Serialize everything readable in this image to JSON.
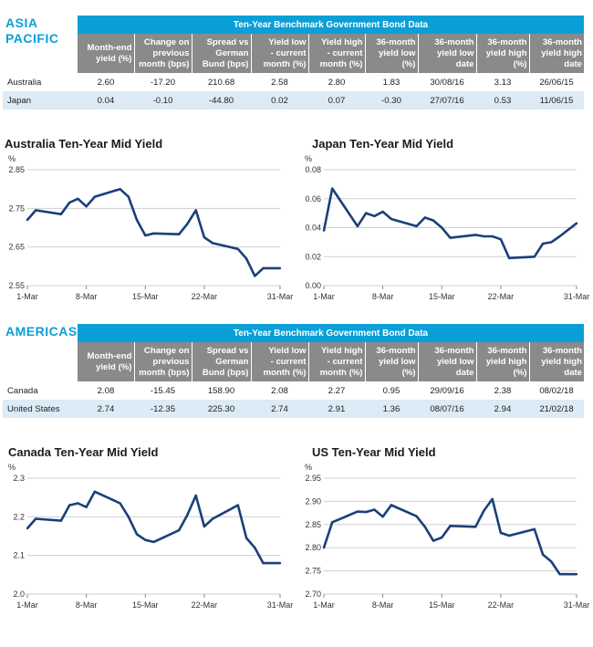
{
  "sections": [
    {
      "region_line1": "ASIA",
      "region_line2": "PACIFIC",
      "table_title": "Ten-Year Benchmark Government Bond Data",
      "headers": [
        [
          "Month-end",
          "yield (%)"
        ],
        [
          "Change on",
          "previous",
          "month (bps)"
        ],
        [
          "Spread vs",
          "German",
          "Bund (bps)"
        ],
        [
          "Yield low",
          "- current",
          "month (%)"
        ],
        [
          "Yield high",
          "- current",
          "month (%)"
        ],
        [
          "36-month",
          "yield low",
          "(%)"
        ],
        [
          "36-month",
          "yield low",
          "date"
        ],
        [
          "36-month",
          "yield high",
          "(%)"
        ],
        [
          "36-month",
          "yield high",
          "date"
        ]
      ],
      "rows": [
        {
          "country": "Australia",
          "cells": [
            "2.60",
            "-17.20",
            "210.68",
            "2.58",
            "2.80",
            "1.83",
            "30/08/16",
            "3.13",
            "26/06/15"
          ]
        },
        {
          "country": "Japan",
          "cells": [
            "0.04",
            "-0.10",
            "-44.80",
            "0.02",
            "0.07",
            "-0.30",
            "27/07/16",
            "0.53",
            "11/06/15"
          ]
        }
      ]
    },
    {
      "region_line1": "AMERICAS",
      "region_line2": "",
      "table_title": "Ten-Year Benchmark Government Bond Data",
      "headers": [
        [
          "Month-end",
          "yield (%)"
        ],
        [
          "Change on",
          "previous",
          "month (bps)"
        ],
        [
          "Spread vs",
          "German",
          "Bund (bps)"
        ],
        [
          "Yield low",
          "- current",
          "month (%)"
        ],
        [
          "Yield high",
          "- current",
          "month (%)"
        ],
        [
          "36-month",
          "yield low",
          "(%)"
        ],
        [
          "36-month",
          "yield low",
          "date"
        ],
        [
          "36-month",
          "yield high",
          "(%)"
        ],
        [
          "36-month",
          "yield high",
          "date"
        ]
      ],
      "rows": [
        {
          "country": "Canada",
          "cells": [
            "2.08",
            "-15.45",
            "158.90",
            "2.08",
            "2.27",
            "0.95",
            "29/09/16",
            "2.38",
            "08/02/18"
          ]
        },
        {
          "country": "United States",
          "cells": [
            "2.74",
            "-12.35",
            "225.30",
            "2.74",
            "2.91",
            "1.36",
            "08/07/16",
            "2.94",
            "21/02/18"
          ]
        }
      ]
    }
  ],
  "colors": {
    "accent": "#0b9fd8",
    "header_gray": "#8a8a8a",
    "row_alt": "#dcebf6",
    "line": "#1c3f7a"
  },
  "chart_data": [
    {
      "type": "line",
      "title": "Australia Ten-Year Mid Yield",
      "ylabel": "%",
      "ylim": [
        2.55,
        2.85
      ],
      "yticks": [
        "2.85",
        "2.75",
        "2.65",
        "2.55"
      ],
      "ytick_values": [
        2.85,
        2.75,
        2.65,
        2.55
      ],
      "xticks": [
        "1-Mar",
        "8-Mar",
        "15-Mar",
        "22-Mar",
        "31-Mar"
      ],
      "xtick_days": [
        1,
        8,
        15,
        22,
        31
      ],
      "x": [
        1,
        2,
        3,
        4,
        5,
        6,
        7,
        8,
        9,
        10,
        11,
        12,
        13,
        14,
        15,
        16,
        17,
        18,
        19,
        20,
        21,
        22
      ],
      "values": [
        2.72,
        2.745,
        2.735,
        2.765,
        2.775,
        2.755,
        2.78,
        2.8,
        2.78,
        2.72,
        2.68,
        2.685,
        2.683,
        2.71,
        2.745,
        2.675,
        2.66,
        2.645,
        2.62,
        2.575,
        2.595,
        2.595
      ]
    },
    {
      "type": "line",
      "title": "Japan Ten-Year Mid Yield",
      "ylabel": "%",
      "ylim": [
        0.0,
        0.08
      ],
      "yticks": [
        "0.08",
        "0.06",
        "0.04",
        "0.02",
        "0.00"
      ],
      "ytick_values": [
        0.08,
        0.06,
        0.04,
        0.02,
        0.0
      ],
      "xticks": [
        "1-Mar",
        "8-Mar",
        "15-Mar",
        "22-Mar",
        "31-Mar"
      ],
      "xtick_days": [
        1,
        8,
        15,
        22,
        31
      ],
      "x": [
        1,
        2,
        3,
        4,
        5,
        6,
        7,
        8,
        9,
        10,
        11,
        12,
        13,
        14,
        15,
        16,
        17,
        18,
        19,
        20,
        21,
        22
      ],
      "values": [
        0.038,
        0.067,
        0.041,
        0.05,
        0.048,
        0.051,
        0.046,
        0.041,
        0.047,
        0.045,
        0.04,
        0.033,
        0.035,
        0.034,
        0.034,
        0.032,
        0.019,
        0.02,
        0.029,
        0.03,
        0.034,
        0.043
      ]
    },
    {
      "type": "line",
      "title": "Canada Ten-Year Mid Yield",
      "ylabel": "%",
      "ylim": [
        2.0,
        2.3
      ],
      "yticks": [
        "2.3",
        "2.2",
        "2.1",
        "2.0"
      ],
      "ytick_values": [
        2.3,
        2.2,
        2.1,
        2.0
      ],
      "xticks": [
        "1-Mar",
        "8-Mar",
        "15-Mar",
        "22-Mar",
        "31-Mar"
      ],
      "xtick_days": [
        1,
        8,
        15,
        22,
        31
      ],
      "x": [
        1,
        2,
        3,
        4,
        5,
        6,
        7,
        8,
        9,
        10,
        11,
        12,
        13,
        14,
        15,
        16,
        17,
        18,
        19,
        20,
        21,
        22
      ],
      "values": [
        2.17,
        2.195,
        2.19,
        2.23,
        2.235,
        2.225,
        2.265,
        2.235,
        2.2,
        2.155,
        2.14,
        2.135,
        2.165,
        2.205,
        2.255,
        2.175,
        2.195,
        2.23,
        2.145,
        2.12,
        2.08,
        2.08
      ]
    },
    {
      "type": "line",
      "title": "US Ten-Year Mid Yield",
      "ylabel": "%",
      "ylim": [
        2.7,
        2.95
      ],
      "yticks": [
        "2.95",
        "2.90",
        "2.85",
        "2.80",
        "2.75",
        "2.70"
      ],
      "ytick_values": [
        2.95,
        2.9,
        2.85,
        2.8,
        2.75,
        2.7
      ],
      "xticks": [
        "1-Mar",
        "8-Mar",
        "15-Mar",
        "22-Mar",
        "31-Mar"
      ],
      "xtick_days": [
        1,
        8,
        15,
        22,
        31
      ],
      "x": [
        1,
        2,
        3,
        4,
        5,
        6,
        7,
        8,
        9,
        10,
        11,
        12,
        13,
        14,
        15,
        16,
        17,
        18,
        19,
        20,
        21,
        22
      ],
      "values": [
        2.8,
        2.855,
        2.878,
        2.877,
        2.882,
        2.867,
        2.892,
        2.868,
        2.845,
        2.815,
        2.822,
        2.847,
        2.845,
        2.88,
        2.905,
        2.832,
        2.826,
        2.84,
        2.785,
        2.77,
        2.743,
        2.743
      ]
    }
  ]
}
